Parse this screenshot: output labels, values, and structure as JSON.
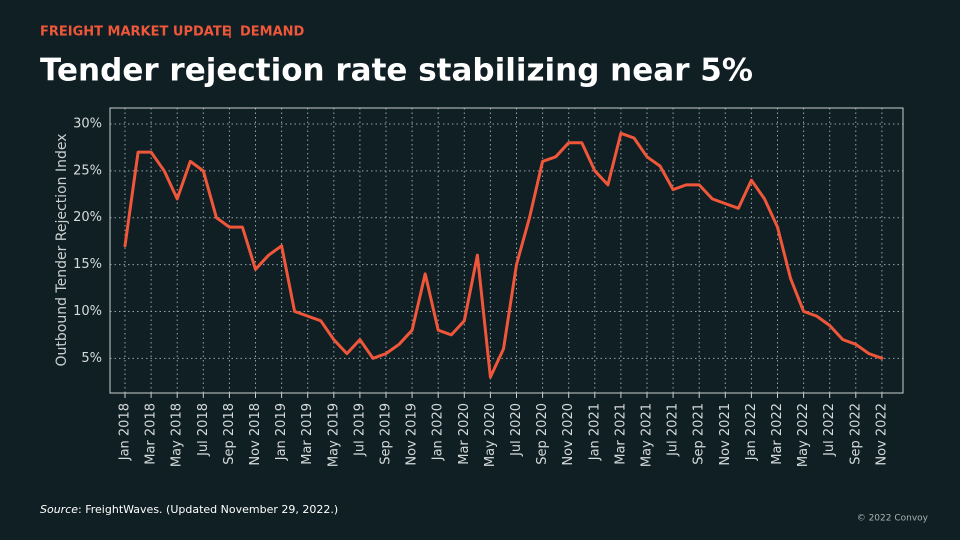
{
  "kicker": "FREIGHT MARKET UPDATE",
  "kicker_section": "DEMAND",
  "source_label": "Source",
  "source_text": ": FreightWaves. (Updated November 29, 2022.)",
  "copyright": "© 2022 Convoy",
  "chart_data": {
    "type": "line",
    "title": "Tender rejection rate stabilizing near 5%",
    "y_label": "Outbound Tender Rejection Index",
    "x": [
      "2018-01",
      "2018-02",
      "2018-03",
      "2018-04",
      "2018-05",
      "2018-06",
      "2018-07",
      "2018-08",
      "2018-09",
      "2018-10",
      "2018-11",
      "2018-12",
      "2019-01",
      "2019-02",
      "2019-03",
      "2019-04",
      "2019-05",
      "2019-06",
      "2019-07",
      "2019-08",
      "2019-09",
      "2019-10",
      "2019-11",
      "2019-12",
      "2020-01",
      "2020-02",
      "2020-03",
      "2020-04",
      "2020-05",
      "2020-06",
      "2020-07",
      "2020-08",
      "2020-09",
      "2020-10",
      "2020-11",
      "2020-12",
      "2021-01",
      "2021-02",
      "2021-03",
      "2021-04",
      "2021-05",
      "2021-06",
      "2021-07",
      "2021-08",
      "2021-09",
      "2021-10",
      "2021-11",
      "2021-12",
      "2022-01",
      "2022-02",
      "2022-03",
      "2022-04",
      "2022-05",
      "2022-06",
      "2022-07",
      "2022-08",
      "2022-09",
      "2022-10",
      "2022-11"
    ],
    "values": [
      17,
      27,
      27,
      25,
      22,
      26,
      25,
      20,
      19,
      19,
      14.5,
      16,
      17,
      10,
      9.5,
      9,
      7,
      5.5,
      7,
      5,
      5.5,
      6.5,
      8,
      14,
      8,
      7.5,
      9,
      16,
      3,
      6,
      15,
      20,
      26,
      26.5,
      28,
      28,
      25,
      23.5,
      29,
      28.5,
      26.5,
      25.5,
      23,
      23.5,
      23.5,
      22,
      21.5,
      21,
      24,
      22,
      19,
      13.5,
      10,
      9.5,
      8.5,
      7,
      6.5,
      5.5,
      5
    ],
    "color": "#f0573a",
    "xticks": [
      {
        "value": "2018-01",
        "label": "Jan 2018"
      },
      {
        "value": "2018-03",
        "label": "Mar 2018"
      },
      {
        "value": "2018-05",
        "label": "May 2018"
      },
      {
        "value": "2018-07",
        "label": "Jul 2018"
      },
      {
        "value": "2018-09",
        "label": "Sep 2018"
      },
      {
        "value": "2018-11",
        "label": "Nov 2018"
      },
      {
        "value": "2019-01",
        "label": "Jan 2019"
      },
      {
        "value": "2019-03",
        "label": "Mar 2019"
      },
      {
        "value": "2019-05",
        "label": "May 2019"
      },
      {
        "value": "2019-07",
        "label": "Jul 2019"
      },
      {
        "value": "2019-09",
        "label": "Sep 2019"
      },
      {
        "value": "2019-11",
        "label": "Nov 2019"
      },
      {
        "value": "2020-01",
        "label": "Jan 2020"
      },
      {
        "value": "2020-03",
        "label": "Mar 2020"
      },
      {
        "value": "2020-05",
        "label": "May 2020"
      },
      {
        "value": "2020-07",
        "label": "Jul 2020"
      },
      {
        "value": "2020-09",
        "label": "Sep 2020"
      },
      {
        "value": "2020-11",
        "label": "Nov 2020"
      },
      {
        "value": "2021-01",
        "label": "Jan 2021"
      },
      {
        "value": "2021-03",
        "label": "Mar 2021"
      },
      {
        "value": "2021-05",
        "label": "May 2021"
      },
      {
        "value": "2021-07",
        "label": "Jul 2021"
      },
      {
        "value": "2021-09",
        "label": "Sep 2021"
      },
      {
        "value": "2021-11",
        "label": "Nov 2021"
      },
      {
        "value": "2022-01",
        "label": "Jan 2022"
      },
      {
        "value": "2022-03",
        "label": "Mar 2022"
      },
      {
        "value": "2022-05",
        "label": "May 2022"
      },
      {
        "value": "2022-07",
        "label": "Jul 2022"
      },
      {
        "value": "2022-09",
        "label": "Sep 2022"
      },
      {
        "value": "2022-11",
        "label": "Nov 2022"
      }
    ],
    "ylim": [
      1.3,
      31.7
    ],
    "yticks": [
      {
        "value": 5,
        "label": "5%"
      },
      {
        "value": 10,
        "label": "10%"
      },
      {
        "value": 15,
        "label": "15%"
      },
      {
        "value": 20,
        "label": "20%"
      },
      {
        "value": 25,
        "label": "25%"
      },
      {
        "value": 30,
        "label": "30%"
      }
    ],
    "grid": true
  }
}
